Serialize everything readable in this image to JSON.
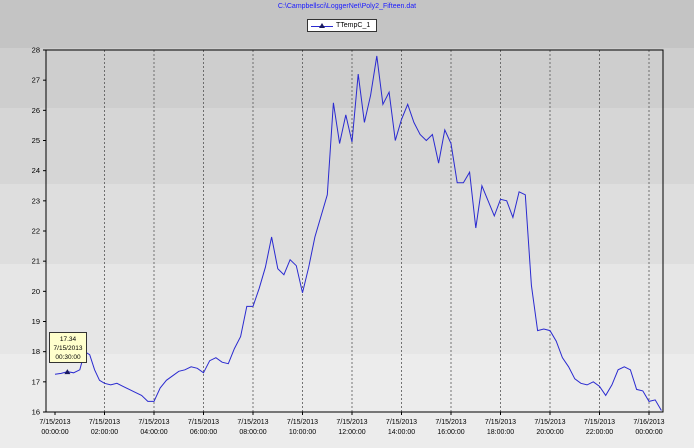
{
  "window": {
    "file_title": "C:\\Campbellsci\\LoggerNet\\Poly2_Fifteen.dat"
  },
  "colors": {
    "series_line": "#2a2ad0",
    "plot_border": "#000000",
    "grid": "#555555",
    "tooltip_bg": "#ffffcc"
  },
  "tooltip": {
    "value": "17.34",
    "date": "7/15/2013",
    "time": "00:30:00"
  },
  "chart_data": {
    "type": "line",
    "title": "C:\\Campbellsci\\LoggerNet\\Poly2_Fifteen.dat",
    "xlabel": "",
    "ylabel": "",
    "x_unit": "hours since 7/15/2013 00:00:00",
    "xlim": [
      0,
      24
    ],
    "ylim": [
      16,
      28
    ],
    "y_ticks": [
      16,
      17,
      18,
      19,
      20,
      21,
      22,
      23,
      24,
      25,
      26,
      27,
      28
    ],
    "x_ticks": [
      {
        "date": "7/15/2013",
        "time": "00:00:00"
      },
      {
        "date": "7/15/2013",
        "time": "02:00:00"
      },
      {
        "date": "7/15/2013",
        "time": "04:00:00"
      },
      {
        "date": "7/15/2013",
        "time": "06:00:00"
      },
      {
        "date": "7/15/2013",
        "time": "08:00:00"
      },
      {
        "date": "7/15/2013",
        "time": "10:00:00"
      },
      {
        "date": "7/15/2013",
        "time": "12:00:00"
      },
      {
        "date": "7/15/2013",
        "time": "14:00:00"
      },
      {
        "date": "7/15/2013",
        "time": "16:00:00"
      },
      {
        "date": "7/15/2013",
        "time": "18:00:00"
      },
      {
        "date": "7/15/2013",
        "time": "20:00:00"
      },
      {
        "date": "7/15/2013",
        "time": "22:00:00"
      },
      {
        "date": "7/16/2013",
        "time": "00:00:00"
      }
    ],
    "grid": true,
    "legend_position": "top-center",
    "series": [
      {
        "name": "TTempC_1",
        "marker_point": [
          0.5,
          17.34
        ],
        "points": [
          [
            0.0,
            17.25
          ],
          [
            0.25,
            17.28
          ],
          [
            0.5,
            17.34
          ],
          [
            0.75,
            17.3
          ],
          [
            1.0,
            17.4
          ],
          [
            1.2,
            18.0
          ],
          [
            1.4,
            17.9
          ],
          [
            1.6,
            17.4
          ],
          [
            1.8,
            17.05
          ],
          [
            2.0,
            16.95
          ],
          [
            2.25,
            16.9
          ],
          [
            2.5,
            16.95
          ],
          [
            2.75,
            16.85
          ],
          [
            3.0,
            16.75
          ],
          [
            3.25,
            16.65
          ],
          [
            3.5,
            16.55
          ],
          [
            3.75,
            16.35
          ],
          [
            4.0,
            16.35
          ],
          [
            4.25,
            16.8
          ],
          [
            4.5,
            17.05
          ],
          [
            4.75,
            17.2
          ],
          [
            5.0,
            17.35
          ],
          [
            5.25,
            17.4
          ],
          [
            5.5,
            17.5
          ],
          [
            5.75,
            17.45
          ],
          [
            6.0,
            17.3
          ],
          [
            6.25,
            17.7
          ],
          [
            6.5,
            17.8
          ],
          [
            6.75,
            17.65
          ],
          [
            7.0,
            17.6
          ],
          [
            7.25,
            18.1
          ],
          [
            7.5,
            18.5
          ],
          [
            7.75,
            19.5
          ],
          [
            8.0,
            19.5
          ],
          [
            8.25,
            20.1
          ],
          [
            8.5,
            20.8
          ],
          [
            8.75,
            21.8
          ],
          [
            9.0,
            20.75
          ],
          [
            9.25,
            20.55
          ],
          [
            9.5,
            21.05
          ],
          [
            9.75,
            20.85
          ],
          [
            10.0,
            19.95
          ],
          [
            10.25,
            20.8
          ],
          [
            10.5,
            21.8
          ],
          [
            10.75,
            22.5
          ],
          [
            11.0,
            23.2
          ],
          [
            11.25,
            26.25
          ],
          [
            11.5,
            24.9
          ],
          [
            11.75,
            25.85
          ],
          [
            12.0,
            24.95
          ],
          [
            12.25,
            27.2
          ],
          [
            12.5,
            25.6
          ],
          [
            12.75,
            26.5
          ],
          [
            13.0,
            27.8
          ],
          [
            13.25,
            26.2
          ],
          [
            13.5,
            26.6
          ],
          [
            13.75,
            25.0
          ],
          [
            14.0,
            25.7
          ],
          [
            14.25,
            26.2
          ],
          [
            14.5,
            25.6
          ],
          [
            14.75,
            25.2
          ],
          [
            15.0,
            25.0
          ],
          [
            15.25,
            25.2
          ],
          [
            15.5,
            24.25
          ],
          [
            15.75,
            25.35
          ],
          [
            16.0,
            24.9
          ],
          [
            16.25,
            23.6
          ],
          [
            16.5,
            23.6
          ],
          [
            16.75,
            23.95
          ],
          [
            17.0,
            22.1
          ],
          [
            17.25,
            23.5
          ],
          [
            17.5,
            23.0
          ],
          [
            17.75,
            22.5
          ],
          [
            18.0,
            23.05
          ],
          [
            18.25,
            23.0
          ],
          [
            18.5,
            22.45
          ],
          [
            18.75,
            23.3
          ],
          [
            19.0,
            23.2
          ],
          [
            19.25,
            20.2
          ],
          [
            19.5,
            18.7
          ],
          [
            19.75,
            18.75
          ],
          [
            20.0,
            18.7
          ],
          [
            20.25,
            18.35
          ],
          [
            20.5,
            17.8
          ],
          [
            20.75,
            17.5
          ],
          [
            21.0,
            17.1
          ],
          [
            21.25,
            16.95
          ],
          [
            21.5,
            16.9
          ],
          [
            21.75,
            17.0
          ],
          [
            22.0,
            16.85
          ],
          [
            22.25,
            16.55
          ],
          [
            22.5,
            16.9
          ],
          [
            22.75,
            17.4
          ],
          [
            23.0,
            17.5
          ],
          [
            23.25,
            17.4
          ],
          [
            23.5,
            16.75
          ],
          [
            23.75,
            16.7
          ],
          [
            24.0,
            16.35
          ],
          [
            24.25,
            16.4
          ],
          [
            24.5,
            16.05
          ]
        ]
      }
    ]
  }
}
